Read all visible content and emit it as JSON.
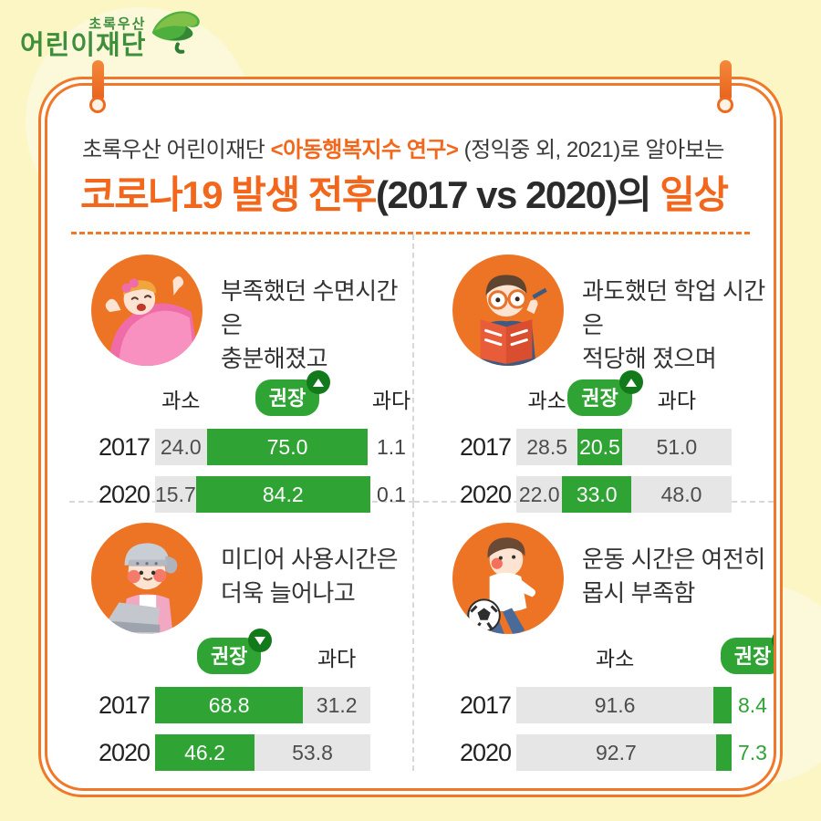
{
  "colors": {
    "background": "#FBF6C4",
    "card_border_orange": "#F07828",
    "accent_orange": "#F2671C",
    "illustration_orange": "#EE7425",
    "bar_green": "#2FA435",
    "badge_dark_green": "#127A1A",
    "bar_gray": "#E6E6E6",
    "value_gray_text": "#4D4D4D",
    "logo_green": "#3E8F3C",
    "divider_gray": "#D8D8D8"
  },
  "logo": {
    "line1": "초록우산",
    "line2": "어린이재단",
    "icon": "green-umbrella-leaf"
  },
  "header": {
    "intro_prefix": "초록우산 어린이재단 ",
    "intro_highlight": "<아동행복지수 연구>",
    "intro_suffix": " (정익중 외, 2021)로 알아보는",
    "title_part1": "코로나19 발생 전후",
    "title_part2": "(2017 vs 2020)의 ",
    "title_part3": "일상"
  },
  "chart_data": [
    {
      "id": "sleep-time",
      "type": "bar",
      "title": "부족했던 수면시간은 충분해졌고",
      "caption_lines": [
        "부족했던 수면시간은",
        "충분해졌고"
      ],
      "illustration": "sleeping-child",
      "legend": [
        {
          "label": "과소",
          "style": "plain",
          "over": 0
        },
        {
          "label": "권장",
          "style": "pill",
          "arrow": "up",
          "over": 1
        },
        {
          "label": "과다",
          "style": "plain",
          "over": "outside"
        }
      ],
      "rows": [
        {
          "year": "2017",
          "segments": [
            {
              "label": "과소",
              "value": 24.0,
              "color": "gray",
              "value_position": "inside"
            },
            {
              "label": "권장",
              "value": 75.0,
              "color": "green",
              "value_position": "inside"
            },
            {
              "label": "과다",
              "value": 1.1,
              "color": "none",
              "value_position": "outside"
            }
          ]
        },
        {
          "year": "2020",
          "segments": [
            {
              "label": "과소",
              "value": 15.7,
              "color": "gray",
              "value_position": "inside"
            },
            {
              "label": "권장",
              "value": 84.2,
              "color": "green",
              "value_position": "inside"
            },
            {
              "label": "과다",
              "value": 0.1,
              "color": "none",
              "value_position": "outside"
            }
          ]
        }
      ]
    },
    {
      "id": "study-time",
      "type": "bar",
      "title": "과도했던 학업 시간은 적당해 졌으며",
      "caption_lines": [
        "과도했던 학업 시간은",
        "적당해 졌으며"
      ],
      "illustration": "reading-child",
      "legend": [
        {
          "label": "과소",
          "style": "plain",
          "over": 0
        },
        {
          "label": "권장",
          "style": "pill",
          "arrow": "up",
          "over": 1
        },
        {
          "label": "과다",
          "style": "plain",
          "over": 2
        }
      ],
      "rows": [
        {
          "year": "2017",
          "segments": [
            {
              "label": "과소",
              "value": 28.5,
              "color": "gray",
              "value_position": "inside"
            },
            {
              "label": "권장",
              "value": 20.5,
              "color": "green",
              "value_position": "inside"
            },
            {
              "label": "과다",
              "value": 51.0,
              "color": "gray",
              "value_position": "inside"
            }
          ]
        },
        {
          "year": "2020",
          "segments": [
            {
              "label": "과소",
              "value": 22.0,
              "color": "gray",
              "value_position": "inside"
            },
            {
              "label": "권장",
              "value": 33.0,
              "color": "green",
              "value_position": "inside"
            },
            {
              "label": "과다",
              "value": 48.0,
              "color": "gray",
              "value_position": "inside"
            }
          ]
        }
      ]
    },
    {
      "id": "media-time",
      "type": "bar",
      "title": "미디어 사용시간은 더욱 늘어나고",
      "caption_lines": [
        "미디어 사용시간은",
        "더욱 늘어나고"
      ],
      "illustration": "laptop-child",
      "legend": [
        {
          "label": "권장",
          "style": "pill",
          "arrow": "down",
          "over": 0
        },
        {
          "label": "과다",
          "style": "plain",
          "over": 1
        }
      ],
      "rows": [
        {
          "year": "2017",
          "segments": [
            {
              "label": "권장",
              "value": 68.8,
              "color": "green",
              "value_position": "inside"
            },
            {
              "label": "과다",
              "value": 31.2,
              "color": "gray",
              "value_position": "inside"
            }
          ]
        },
        {
          "year": "2020",
          "segments": [
            {
              "label": "권장",
              "value": 46.2,
              "color": "green",
              "value_position": "inside"
            },
            {
              "label": "과다",
              "value": 53.8,
              "color": "gray",
              "value_position": "inside"
            }
          ]
        }
      ]
    },
    {
      "id": "exercise-time",
      "type": "bar",
      "title": "운동 시간은 여전히 몹시 부족함",
      "caption_lines": [
        "운동 시간은 여전히",
        "몹시 부족함"
      ],
      "illustration": "soccer-child",
      "legend": [
        {
          "label": "과소",
          "style": "plain",
          "over": 0
        },
        {
          "label": "권장",
          "style": "pill",
          "arrow": "down",
          "over": "outside"
        }
      ],
      "rows": [
        {
          "year": "2017",
          "segments": [
            {
              "label": "과소",
              "value": 91.6,
              "color": "gray",
              "value_position": "inside"
            },
            {
              "label": "권장",
              "value": 8.4,
              "color": "green",
              "value_position": "outside"
            }
          ]
        },
        {
          "year": "2020",
          "segments": [
            {
              "label": "과소",
              "value": 92.7,
              "color": "gray",
              "value_position": "inside"
            },
            {
              "label": "권장",
              "value": 7.3,
              "color": "green",
              "value_position": "outside"
            }
          ]
        }
      ]
    }
  ]
}
